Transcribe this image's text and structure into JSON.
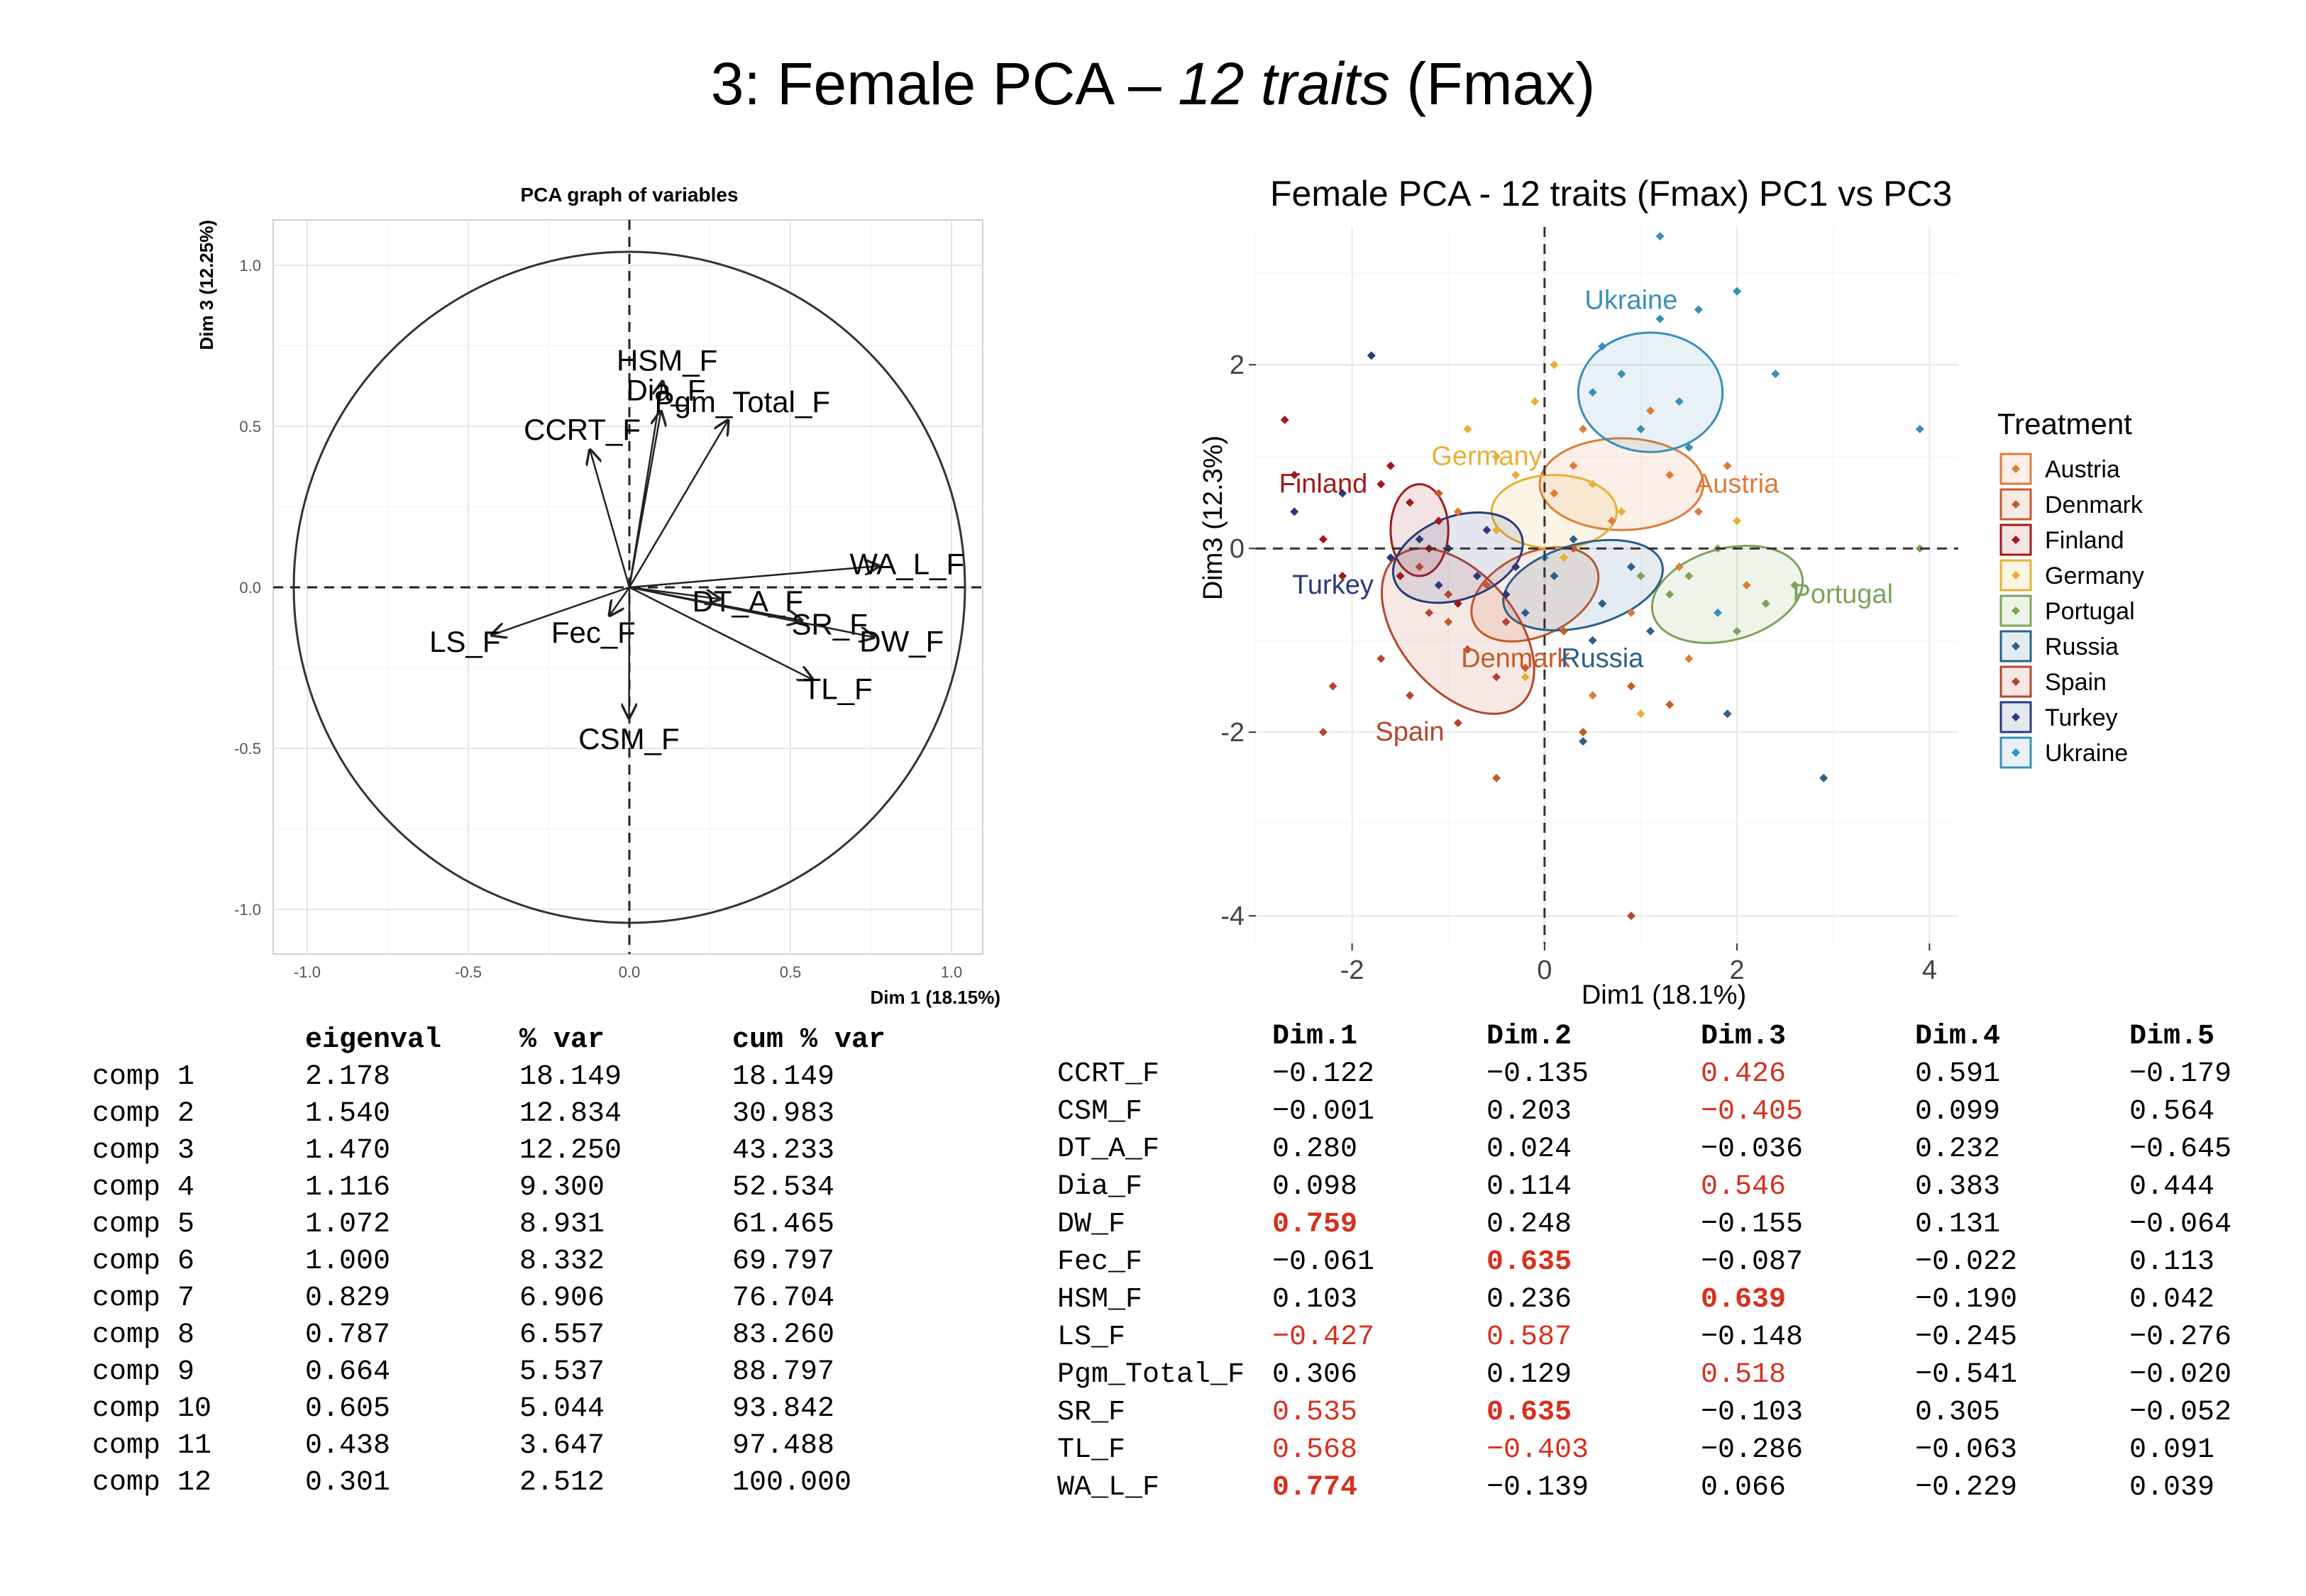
{
  "slide_title": {
    "prefix": "3: Female PCA – ",
    "italic": "12 traits",
    "suffix": " (Fmax)"
  },
  "chart_data": [
    {
      "type": "scatter",
      "subtype": "pca-correlation-circle",
      "title": "PCA graph of variables",
      "xlabel": "Dim 1 (18.15%)",
      "ylabel": "Dim 3 (12.25%)",
      "xlim": [
        -1.0,
        1.0
      ],
      "ylim": [
        -1.0,
        1.0
      ],
      "x_ticks": [
        "-1.0",
        "-0.5",
        "0.0",
        "0.5",
        "1.0"
      ],
      "y_ticks": [
        "-1.0",
        "-0.5",
        "0.0",
        "0.5",
        "1.0"
      ],
      "grid": true,
      "points": [
        {
          "label": "HSM_F",
          "x": 0.103,
          "y": 0.639
        },
        {
          "label": "Dia_F",
          "x": 0.098,
          "y": 0.546
        },
        {
          "label": "Pgm_Total_F",
          "x": 0.306,
          "y": 0.518
        },
        {
          "label": "CCRT_F",
          "x": -0.122,
          "y": 0.426
        },
        {
          "label": "WA_L_F",
          "x": 0.774,
          "y": 0.066
        },
        {
          "label": "DT_A_F",
          "x": 0.28,
          "y": -0.036
        },
        {
          "label": "SR_F",
          "x": 0.535,
          "y": -0.103
        },
        {
          "label": "Fec_F",
          "x": -0.061,
          "y": -0.087
        },
        {
          "label": "LS_F",
          "x": -0.427,
          "y": -0.148
        },
        {
          "label": "DW_F",
          "x": 0.759,
          "y": -0.155
        },
        {
          "label": "TL_F",
          "x": 0.568,
          "y": -0.286
        },
        {
          "label": "CSM_F",
          "x": -0.001,
          "y": -0.405
        }
      ]
    },
    {
      "type": "scatter",
      "title": "Female PCA - 12 traits (Fmax) PC1 vs PC3",
      "xlabel": "Dim1 (18.1%)",
      "ylabel": "Dim3 (12.3%)",
      "xlim": [
        -3,
        4.3
      ],
      "ylim": [
        -4.3,
        3.5
      ],
      "x_ticks": [
        "-2",
        "0",
        "2",
        "4"
      ],
      "y_ticks": [
        "2",
        "0",
        "-2",
        "-4"
      ],
      "legend_title": "Treatment",
      "legend_position": "right",
      "groups": [
        {
          "name": "Austria",
          "color": "#E07B39",
          "centroid": [
            0.8,
            0.7
          ],
          "ellipse": {
            "rx": 0.85,
            "ry": 0.5,
            "angle": 0
          },
          "label_pos": [
            2.0,
            0.7
          ],
          "points": [
            [
              0.4,
              1.3
            ],
            [
              1.1,
              1.5
            ],
            [
              1.3,
              0.8
            ],
            [
              0.7,
              0.3
            ],
            [
              1.6,
              0.4
            ],
            [
              0.3,
              0.9
            ],
            [
              1.4,
              -0.2
            ],
            [
              1.9,
              0.9
            ],
            [
              0.1,
              0.6
            ],
            [
              2.1,
              -0.4
            ],
            [
              -0.9,
              0.4
            ],
            [
              0.9,
              -0.7
            ],
            [
              1.5,
              -1.2
            ],
            [
              0.5,
              -1.6
            ]
          ]
        },
        {
          "name": "Denmark",
          "color": "#C65A2A",
          "centroid": [
            -0.1,
            -0.5
          ],
          "ellipse": {
            "rx": 0.7,
            "ry": 0.45,
            "angle": -25
          },
          "label_pos": [
            -0.3,
            -1.2
          ],
          "points": [
            [
              -0.3,
              -0.2
            ],
            [
              0.2,
              -0.9
            ],
            [
              -0.6,
              -0.4
            ],
            [
              0.6,
              -0.6
            ],
            [
              -0.2,
              -1.3
            ],
            [
              0.3,
              0.0
            ],
            [
              -1.0,
              -0.8
            ],
            [
              0.9,
              -1.5
            ],
            [
              -0.5,
              -2.5
            ],
            [
              0.4,
              -2.0
            ],
            [
              1.3,
              -1.7
            ],
            [
              -1.1,
              0.6
            ]
          ]
        },
        {
          "name": "Finland",
          "color": "#9E1B1B",
          "centroid": [
            -1.3,
            0.2
          ],
          "ellipse": {
            "rx": 0.3,
            "ry": 0.5,
            "angle": 0
          },
          "label_pos": [
            -2.3,
            0.7
          ],
          "points": [
            [
              -1.4,
              0.5
            ],
            [
              -1.2,
              0.0
            ],
            [
              -1.5,
              -0.3
            ],
            [
              -1.1,
              0.3
            ],
            [
              -2.7,
              1.4
            ],
            [
              -2.6,
              0.8
            ],
            [
              -2.3,
              0.1
            ],
            [
              -1.7,
              0.7
            ],
            [
              -0.9,
              -0.6
            ],
            [
              -1.6,
              0.9
            ],
            [
              -2.1,
              -0.3
            ]
          ]
        },
        {
          "name": "Germany",
          "color": "#E8B033",
          "centroid": [
            0.1,
            0.4
          ],
          "ellipse": {
            "rx": 0.65,
            "ry": 0.4,
            "angle": 0
          },
          "label_pos": [
            -0.6,
            1.0
          ],
          "points": [
            [
              -0.3,
              0.8
            ],
            [
              0.5,
              0.7
            ],
            [
              -0.5,
              0.2
            ],
            [
              0.2,
              -0.1
            ],
            [
              -0.1,
              1.6
            ],
            [
              -0.8,
              1.3
            ],
            [
              0.1,
              2.0
            ],
            [
              -0.5,
              1.0
            ],
            [
              0.8,
              0.4
            ],
            [
              1.0,
              -1.8
            ],
            [
              -0.2,
              -1.4
            ],
            [
              2.0,
              0.3
            ]
          ]
        },
        {
          "name": "Portugal",
          "color": "#7BA35A",
          "centroid": [
            1.9,
            -0.5
          ],
          "ellipse": {
            "rx": 0.8,
            "ry": 0.5,
            "angle": -15
          },
          "label_pos": [
            3.1,
            -0.5
          ],
          "points": [
            [
              1.5,
              -0.3
            ],
            [
              2.3,
              -0.6
            ],
            [
              2.0,
              -0.9
            ],
            [
              1.3,
              -0.5
            ],
            [
              2.6,
              -0.4
            ],
            [
              1.8,
              0.0
            ],
            [
              3.9,
              0.0
            ],
            [
              1.0,
              -0.3
            ]
          ]
        },
        {
          "name": "Russia",
          "color": "#2C5F8A",
          "centroid": [
            0.4,
            -0.4
          ],
          "ellipse": {
            "rx": 0.85,
            "ry": 0.45,
            "angle": -15
          },
          "label_pos": [
            0.6,
            -1.2
          ],
          "points": [
            [
              0.1,
              -0.3
            ],
            [
              0.6,
              -0.6
            ],
            [
              -0.2,
              -0.7
            ],
            [
              0.9,
              -0.2
            ],
            [
              0.3,
              0.1
            ],
            [
              1.1,
              -0.9
            ],
            [
              0.5,
              -1.0
            ],
            [
              1.9,
              -1.8
            ],
            [
              2.9,
              -2.5
            ],
            [
              0.4,
              -2.1
            ]
          ]
        },
        {
          "name": "Spain",
          "color": "#B5462D",
          "centroid": [
            -0.9,
            -0.9
          ],
          "ellipse": {
            "rx": 0.6,
            "ry": 1.05,
            "angle": -40
          },
          "label_pos": [
            -1.4,
            -2.0
          ],
          "points": [
            [
              -1.2,
              -0.7
            ],
            [
              -0.8,
              -1.1
            ],
            [
              -0.5,
              -1.4
            ],
            [
              -1.0,
              -0.5
            ],
            [
              -1.4,
              -1.6
            ],
            [
              -0.4,
              -0.8
            ],
            [
              -1.7,
              -1.2
            ],
            [
              -0.9,
              -1.9
            ],
            [
              -2.2,
              -1.5
            ],
            [
              0.9,
              -4.0
            ],
            [
              -2.3,
              -2.0
            ],
            [
              -1.3,
              -0.2
            ]
          ]
        },
        {
          "name": "Turkey",
          "color": "#2A3A7A",
          "centroid": [
            -0.9,
            -0.1
          ],
          "ellipse": {
            "rx": 0.7,
            "ry": 0.45,
            "angle": -20
          },
          "label_pos": [
            -2.2,
            -0.4
          ],
          "points": [
            [
              -1.0,
              0.0
            ],
            [
              -0.7,
              -0.3
            ],
            [
              -1.3,
              0.1
            ],
            [
              -0.6,
              0.2
            ],
            [
              -0.4,
              -0.5
            ],
            [
              -1.6,
              -0.1
            ],
            [
              -2.6,
              0.4
            ],
            [
              -2.1,
              0.6
            ],
            [
              -1.8,
              2.1
            ],
            [
              -0.3,
              -0.2
            ],
            [
              -1.1,
              -0.4
            ]
          ]
        },
        {
          "name": "Ukraine",
          "color": "#3A8FB7",
          "centroid": [
            1.1,
            1.7
          ],
          "ellipse": {
            "rx": 0.75,
            "ry": 0.65,
            "angle": 0
          },
          "label_pos": [
            0.9,
            2.7
          ],
          "points": [
            [
              1.2,
              2.5
            ],
            [
              0.8,
              1.9
            ],
            [
              1.4,
              1.6
            ],
            [
              1.0,
              1.3
            ],
            [
              0.5,
              1.7
            ],
            [
              1.5,
              1.1
            ],
            [
              1.2,
              3.4
            ],
            [
              2.0,
              2.8
            ],
            [
              1.6,
              2.6
            ],
            [
              2.4,
              1.9
            ],
            [
              3.9,
              1.3
            ],
            [
              0.6,
              2.2
            ],
            [
              1.8,
              -0.7
            ],
            [
              0.0,
              -0.1
            ]
          ]
        }
      ]
    }
  ],
  "eigen_table": {
    "headers": [
      "",
      "eigenval",
      "% var",
      "cum % var"
    ],
    "rows": [
      [
        "comp 1",
        "2.178",
        "18.149",
        "18.149"
      ],
      [
        "comp 2",
        "1.540",
        "12.834",
        "30.983"
      ],
      [
        "comp 3",
        "1.470",
        "12.250",
        "43.233"
      ],
      [
        "comp 4",
        "1.116",
        "9.300",
        "52.534"
      ],
      [
        "comp 5",
        "1.072",
        "8.931",
        "61.465"
      ],
      [
        "comp 6",
        "1.000",
        "8.332",
        "69.797"
      ],
      [
        "comp 7",
        "0.829",
        "6.906",
        "76.704"
      ],
      [
        "comp 8",
        "0.787",
        "6.557",
        "83.260"
      ],
      [
        "comp 9",
        "0.664",
        "5.537",
        "88.797"
      ],
      [
        "comp 10",
        "0.605",
        "5.044",
        "93.842"
      ],
      [
        "comp 11",
        "0.438",
        "3.647",
        "97.488"
      ],
      [
        "comp 12",
        "0.301",
        "2.512",
        "100.000"
      ]
    ]
  },
  "loadings_table": {
    "headers": [
      "",
      "Dim.1",
      "Dim.2",
      "Dim.3",
      "Dim.4",
      "Dim.5"
    ],
    "highlight_color": "#d7301f",
    "rows": [
      {
        "cells": [
          "CCRT_F",
          "−0.122",
          "−0.135",
          "0.426",
          "0.591",
          "−0.179"
        ],
        "hl": [
          "",
          "",
          "",
          "red",
          "",
          ""
        ]
      },
      {
        "cells": [
          "CSM_F",
          "−0.001",
          "0.203",
          "−0.405",
          "0.099",
          "0.564"
        ],
        "hl": [
          "",
          "",
          "",
          "red",
          "",
          ""
        ]
      },
      {
        "cells": [
          "DT_A_F",
          "0.280",
          "0.024",
          "−0.036",
          "0.232",
          "−0.645"
        ],
        "hl": [
          "",
          "",
          "",
          "",
          "",
          ""
        ]
      },
      {
        "cells": [
          "Dia_F",
          "0.098",
          "0.114",
          "0.546",
          "0.383",
          "0.444"
        ],
        "hl": [
          "",
          "",
          "",
          "red",
          "",
          ""
        ]
      },
      {
        "cells": [
          "DW_F",
          "0.759",
          "0.248",
          "−0.155",
          "0.131",
          "−0.064"
        ],
        "hl": [
          "",
          "bold",
          "",
          "",
          "",
          ""
        ]
      },
      {
        "cells": [
          "Fec_F",
          "−0.061",
          "0.635",
          "−0.087",
          "−0.022",
          "0.113"
        ],
        "hl": [
          "",
          "",
          "bold",
          "",
          "",
          ""
        ]
      },
      {
        "cells": [
          "HSM_F",
          "0.103",
          "0.236",
          "0.639",
          "−0.190",
          "0.042"
        ],
        "hl": [
          "",
          "",
          "",
          "bold",
          "",
          ""
        ]
      },
      {
        "cells": [
          "LS_F",
          "−0.427",
          "0.587",
          "−0.148",
          "−0.245",
          "−0.276"
        ],
        "hl": [
          "",
          "red",
          "red",
          "",
          "",
          ""
        ]
      },
      {
        "cells": [
          "Pgm_Total_F",
          "0.306",
          "0.129",
          "0.518",
          "−0.541",
          "−0.020"
        ],
        "hl": [
          "",
          "",
          "",
          "red",
          "",
          ""
        ]
      },
      {
        "cells": [
          "SR_F",
          "0.535",
          "0.635",
          "−0.103",
          "0.305",
          "−0.052"
        ],
        "hl": [
          "",
          "red",
          "bold",
          "",
          "",
          ""
        ]
      },
      {
        "cells": [
          "TL_F",
          "0.568",
          "−0.403",
          "−0.286",
          "−0.063",
          "0.091"
        ],
        "hl": [
          "",
          "red",
          "red",
          "",
          "",
          ""
        ]
      },
      {
        "cells": [
          "WA_L_F",
          "0.774",
          "−0.139",
          "0.066",
          "−0.229",
          "0.039"
        ],
        "hl": [
          "",
          "bold",
          "",
          "",
          "",
          ""
        ]
      }
    ]
  }
}
